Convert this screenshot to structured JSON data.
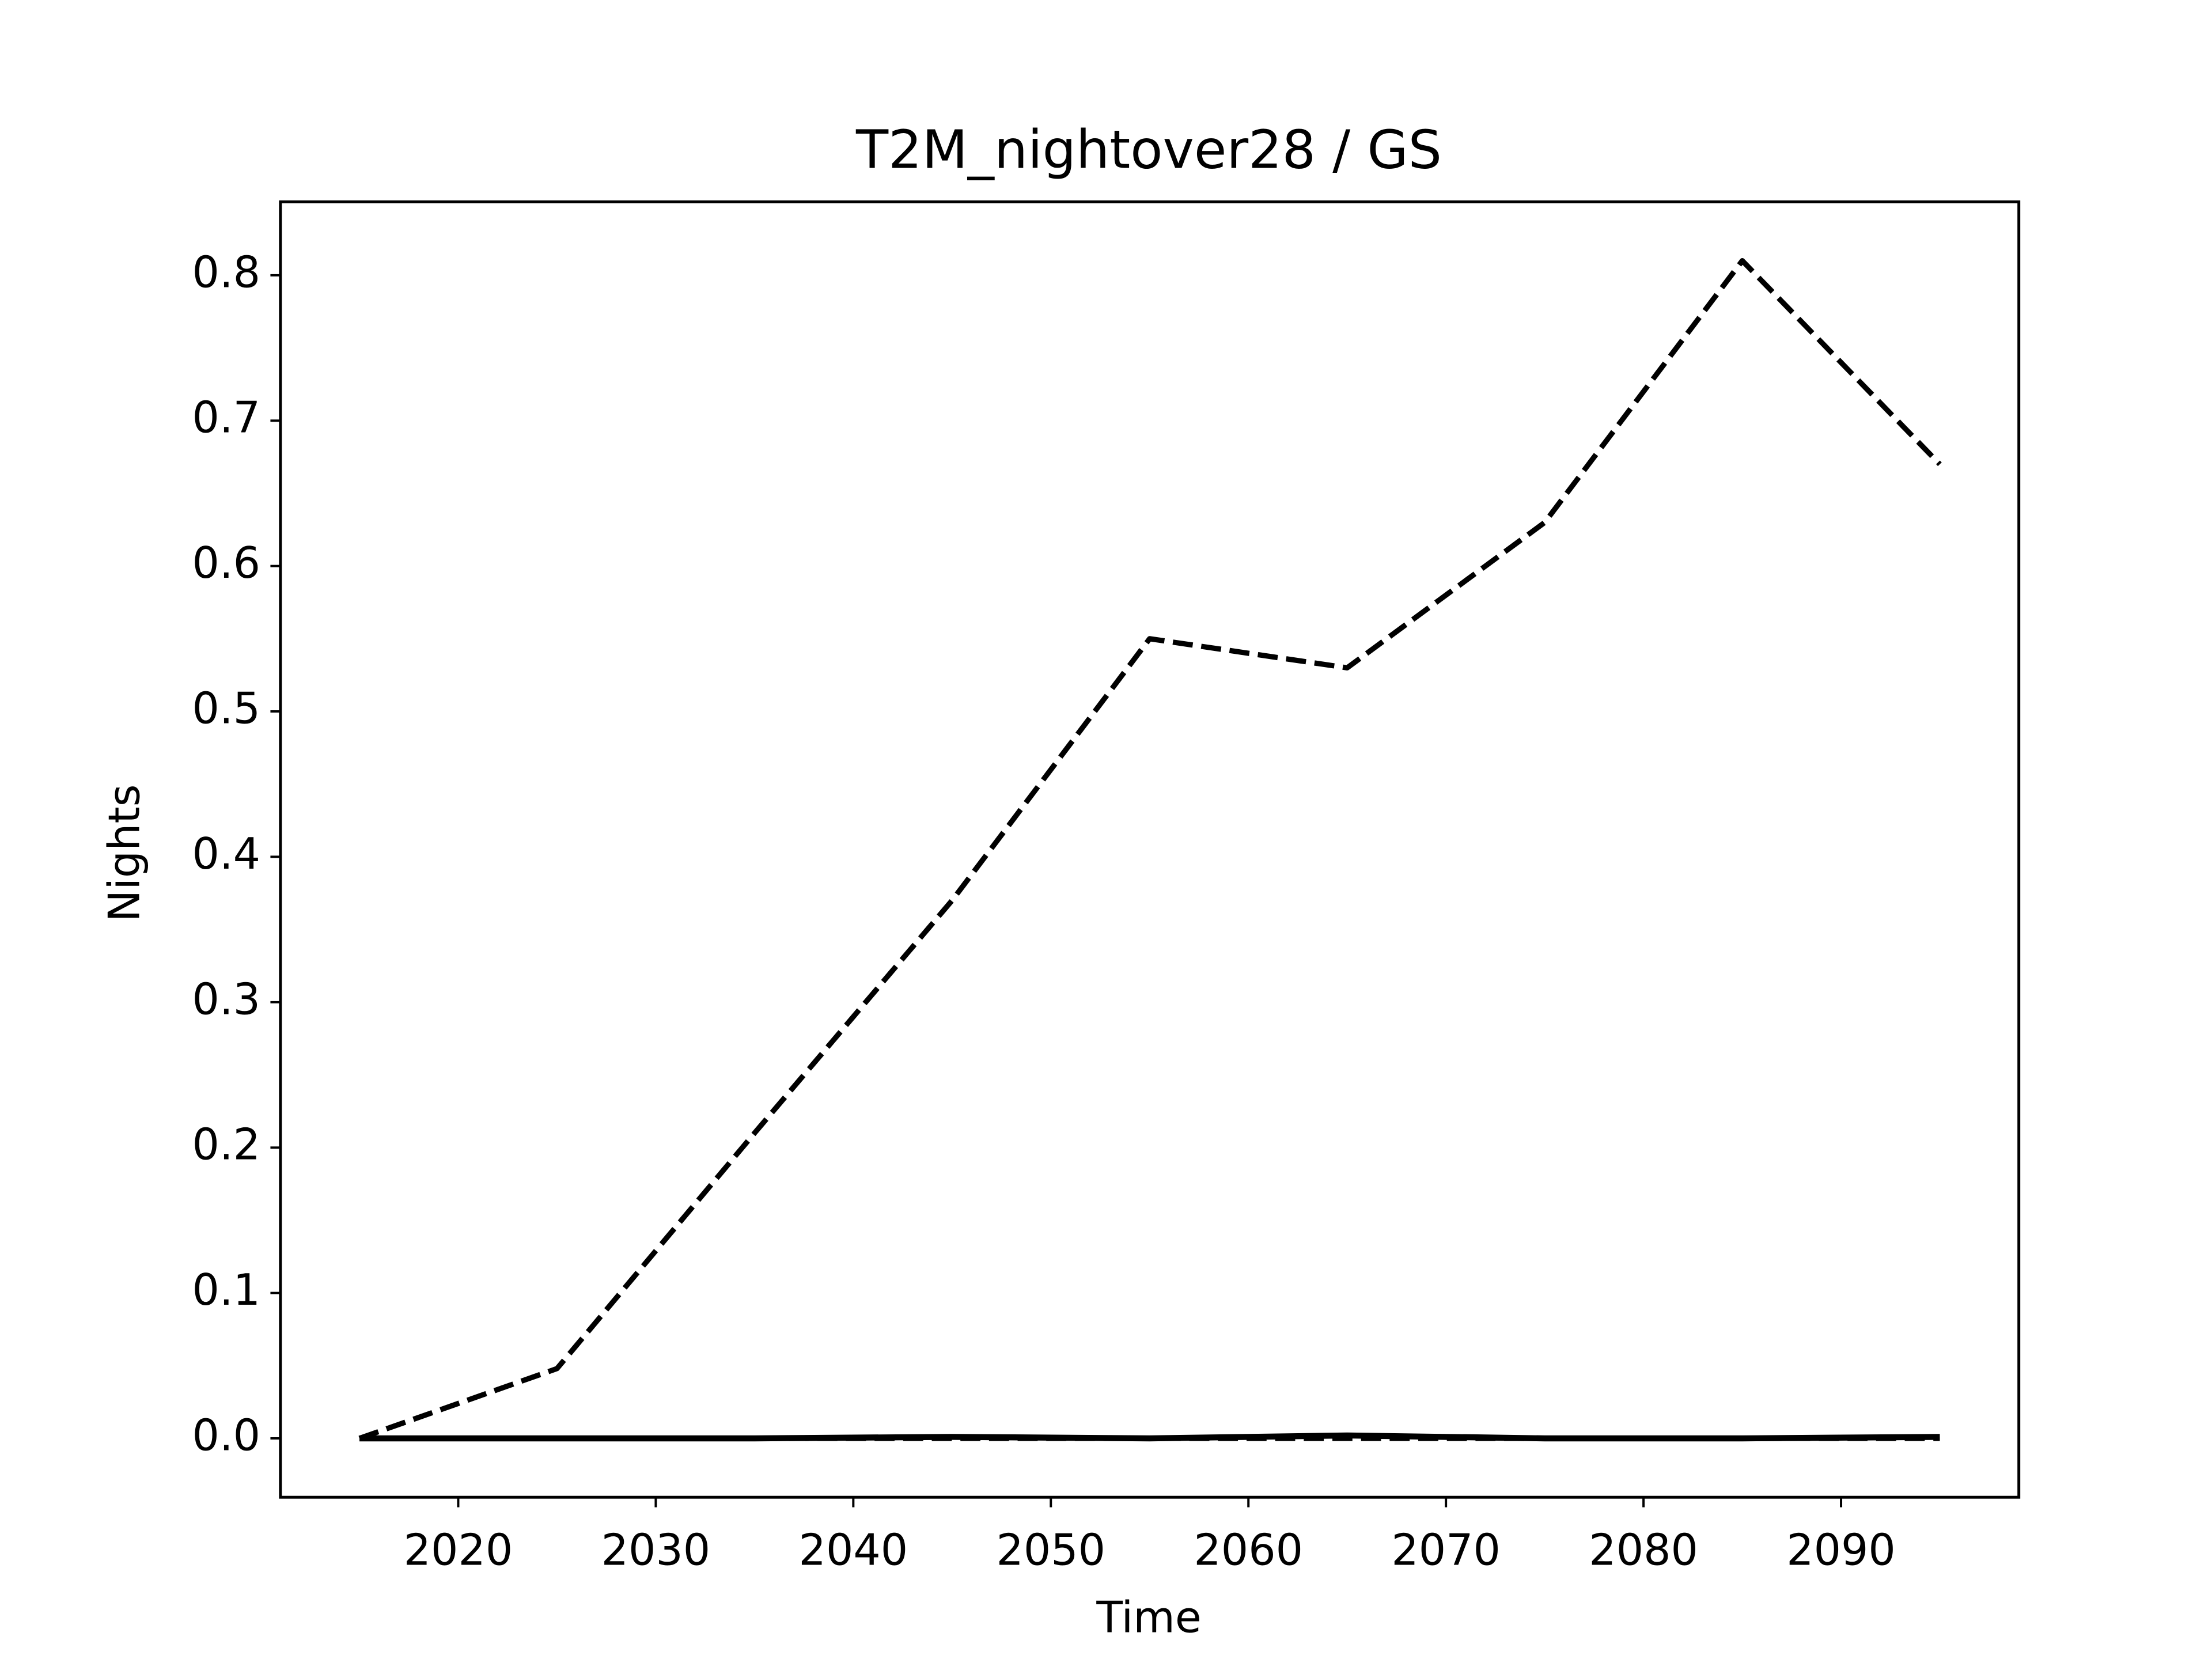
{
  "chart_data": {
    "type": "line",
    "title": "T2M_nightover28 / GS",
    "xlabel": "Time",
    "ylabel": "Nights",
    "x": [
      2015,
      2025,
      2035,
      2045,
      2055,
      2065,
      2075,
      2085,
      2095
    ],
    "series": [
      {
        "color": "#000000",
        "linestyle": "dashed",
        "values": [
          0,
          0.048,
          0.21,
          0.37,
          0.55,
          0.53,
          0.63,
          0.81,
          0.67
        ]
      },
      {
        "color": "#000000",
        "linestyle": "solid",
        "values": [
          0,
          0,
          0,
          0.001,
          0,
          0.002,
          0,
          0,
          0.001
        ]
      },
      {
        "color": "#000000",
        "linestyle": "dashed",
        "values": [
          0,
          0,
          0,
          0,
          0,
          0,
          0,
          0,
          0
        ]
      }
    ],
    "xlim": [
      2011,
      2099
    ],
    "xticks": [
      2020,
      2030,
      2040,
      2050,
      2060,
      2070,
      2080,
      2090
    ],
    "ylim": [
      -0.0405,
      0.8505
    ],
    "yticks": [
      {
        "value": 0,
        "label": "0.0"
      },
      0.1,
      0.2,
      0.3,
      0.4,
      0.5,
      0.6,
      0.7,
      0.8
    ],
    "grid": false
  }
}
